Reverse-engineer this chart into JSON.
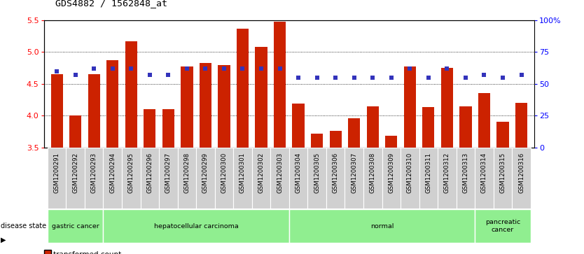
{
  "title": "GDS4882 / 1562848_at",
  "samples": [
    "GSM1200291",
    "GSM1200292",
    "GSM1200293",
    "GSM1200294",
    "GSM1200295",
    "GSM1200296",
    "GSM1200297",
    "GSM1200298",
    "GSM1200299",
    "GSM1200300",
    "GSM1200301",
    "GSM1200302",
    "GSM1200303",
    "GSM1200304",
    "GSM1200305",
    "GSM1200306",
    "GSM1200307",
    "GSM1200308",
    "GSM1200309",
    "GSM1200310",
    "GSM1200311",
    "GSM1200312",
    "GSM1200313",
    "GSM1200314",
    "GSM1200315",
    "GSM1200316"
  ],
  "red_values": [
    4.65,
    4.0,
    4.65,
    4.87,
    5.17,
    4.1,
    4.1,
    4.77,
    4.83,
    4.8,
    5.37,
    5.08,
    5.48,
    4.19,
    3.72,
    3.76,
    3.96,
    4.15,
    3.68,
    4.77,
    4.13,
    4.75,
    4.14,
    4.35,
    3.9,
    4.2
  ],
  "blue_values": [
    60,
    57,
    62,
    62,
    62,
    57,
    57,
    62,
    62,
    62,
    62,
    62,
    62,
    55,
    55,
    55,
    55,
    55,
    55,
    62,
    55,
    62,
    55,
    57,
    55,
    57
  ],
  "groups": [
    {
      "label": "gastric cancer",
      "start": 0,
      "end": 2
    },
    {
      "label": "hepatocellular carcinoma",
      "start": 3,
      "end": 12
    },
    {
      "label": "normal",
      "start": 13,
      "end": 22
    },
    {
      "label": "pancreatic\ncancer",
      "start": 23,
      "end": 25
    }
  ],
  "ylim_left": [
    3.5,
    5.5
  ],
  "ylim_right": [
    0,
    100
  ],
  "yticks_left": [
    3.5,
    4.0,
    4.5,
    5.0,
    5.5
  ],
  "yticks_right": [
    0,
    25,
    50,
    75,
    100
  ],
  "ytick_labels_right": [
    "0",
    "25",
    "50",
    "75",
    "100%"
  ],
  "bar_color": "#cc2200",
  "dot_color": "#3333bb",
  "green_color": "#90ee90",
  "grey_cell": "#d0d0d0",
  "white_gap": "#ffffff"
}
